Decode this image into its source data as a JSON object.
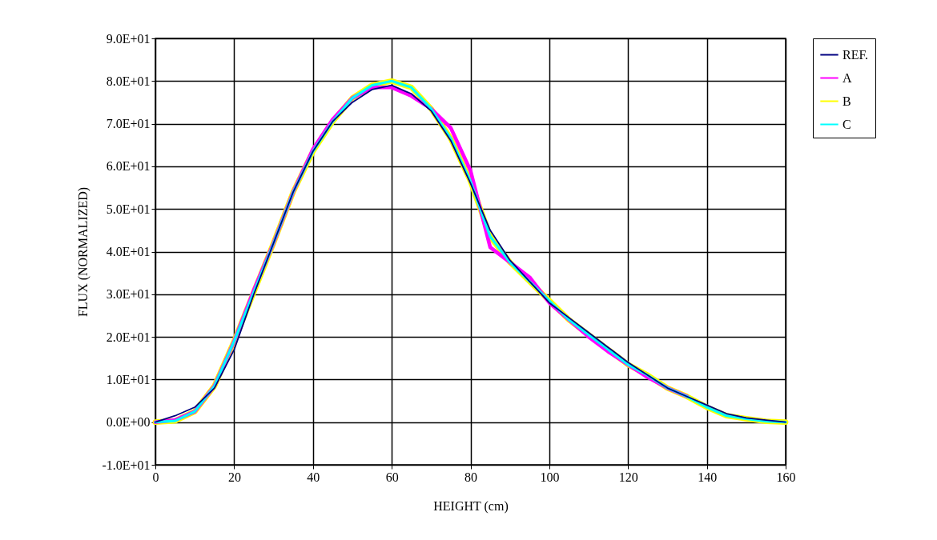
{
  "chart_data": {
    "type": "line",
    "xlabel": "HEIGHT (cm)",
    "ylabel": "FLUX (NORMALIZED)",
    "x": [
      0,
      5,
      10,
      15,
      20,
      25,
      30,
      35,
      40,
      45,
      50,
      55,
      60,
      65,
      70,
      75,
      80,
      85,
      90,
      95,
      100,
      105,
      110,
      115,
      120,
      125,
      130,
      135,
      140,
      145,
      150,
      155,
      160
    ],
    "series": [
      {
        "name": "REF.",
        "color": "#000080",
        "values": [
          0,
          1.5,
          3.5,
          8,
          17,
          30,
          42,
          54,
          63.5,
          70.5,
          75,
          78,
          79,
          77,
          73,
          66,
          56,
          45,
          38,
          33,
          28,
          24.5,
          21,
          17.5,
          14,
          11,
          8,
          6,
          4,
          2,
          1,
          0.5,
          0
        ]
      },
      {
        "name": "A",
        "color": "#ff00ff",
        "values": [
          0,
          0.5,
          2.5,
          8.5,
          19,
          31,
          42,
          54,
          64,
          71,
          76,
          78.5,
          78.5,
          76.5,
          73.5,
          69,
          59,
          41,
          37.5,
          34,
          28,
          24,
          20,
          16.5,
          13.5,
          10.5,
          8,
          6,
          null,
          null,
          null,
          null,
          null
        ]
      },
      {
        "name": "B",
        "color": "#ffff00",
        "values": [
          0,
          0.3,
          2.5,
          8.5,
          19,
          30.5,
          42,
          54,
          63.5,
          70.5,
          76,
          79,
          80,
          78.5,
          73.5,
          66.5,
          56.5,
          43.5,
          37.5,
          33,
          28.5,
          24,
          20.5,
          17,
          13.5,
          11,
          8,
          6,
          3.5,
          1.5,
          0.8,
          0.2,
          0
        ]
      },
      {
        "name": "C",
        "color": "#00ffff",
        "values": [
          0,
          0.3,
          2.5,
          8.5,
          19,
          30.5,
          42,
          54,
          63.5,
          70.5,
          76,
          79,
          80,
          78.5,
          73.5,
          66.5,
          56.5,
          43.5,
          37.5,
          33,
          28.5,
          24,
          20.5,
          17,
          13.5,
          11,
          8,
          6,
          3.5,
          1.5,
          0.8,
          0.2,
          0
        ]
      }
    ],
    "xlim": [
      0,
      160
    ],
    "xticks": [
      0,
      20,
      40,
      60,
      80,
      100,
      120,
      140,
      160
    ],
    "ylim": [
      -10,
      90
    ],
    "yticks": [
      {
        "value": -10,
        "label": "-1.0E+01"
      },
      {
        "value": 0,
        "label": "0.0E+00"
      },
      {
        "value": 10,
        "label": "1.0E+01"
      },
      {
        "value": 20,
        "label": "2.0E+01"
      },
      {
        "value": 30,
        "label": "3.0E+01"
      },
      {
        "value": 40,
        "label": "4.0E+01"
      },
      {
        "value": 50,
        "label": "5.0E+01"
      },
      {
        "value": 60,
        "label": "6.0E+01"
      },
      {
        "value": 70,
        "label": "7.0E+01"
      },
      {
        "value": 80,
        "label": "8.0E+01"
      },
      {
        "value": 90,
        "label": "9.0E+01"
      }
    ],
    "grid": true,
    "legend": "right",
    "marker": "none",
    "line_style": "solid"
  }
}
